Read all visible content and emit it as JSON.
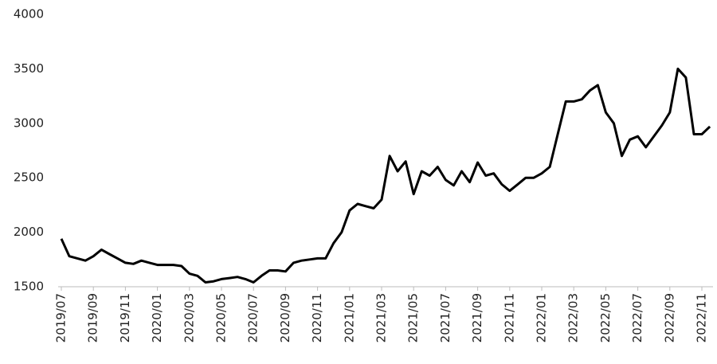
{
  "chart_data": {
    "type": "line",
    "categories": [
      "2019/07",
      null,
      null,
      null,
      "2019/09",
      null,
      null,
      null,
      "2019/11",
      null,
      null,
      null,
      "2020/01",
      null,
      null,
      null,
      "2020/03",
      null,
      null,
      null,
      "2020/05",
      null,
      null,
      null,
      "2020/07",
      null,
      null,
      null,
      "2020/09",
      null,
      null,
      null,
      "2020/11",
      null,
      null,
      null,
      "2021/01",
      null,
      null,
      null,
      "2021/03",
      null,
      null,
      null,
      "2021/05",
      null,
      null,
      null,
      "2021/07",
      null,
      null,
      null,
      "2021/09",
      null,
      null,
      null,
      "2021/11",
      null,
      null,
      null,
      "2022/01",
      null,
      null,
      null,
      "2022/03",
      null,
      null,
      null,
      "2022/05",
      null,
      null,
      null,
      "2022/07",
      null,
      null,
      null,
      "2022/09",
      null,
      null,
      null,
      "2022/11",
      null
    ],
    "series": [
      {
        "color": "#000000",
        "values": [
          1940,
          1780,
          1760,
          1740,
          1780,
          1840,
          1800,
          1760,
          1720,
          1710,
          1740,
          1720,
          1700,
          1700,
          1700,
          1690,
          1620,
          1600,
          1540,
          1550,
          1570,
          1580,
          1590,
          1570,
          1540,
          1600,
          1650,
          1650,
          1640,
          1720,
          1740,
          1750,
          1760,
          1760,
          1900,
          2000,
          2200,
          2260,
          2240,
          2220,
          2300,
          2700,
          2560,
          2650,
          2350,
          2560,
          2520,
          2600,
          2480,
          2430,
          2560,
          2460,
          2640,
          2520,
          2540,
          2440,
          2380,
          2440,
          2500,
          2500,
          2540,
          2600,
          2900,
          3200,
          3200,
          3220,
          3300,
          3350,
          3100,
          3000,
          2700,
          2850,
          2880,
          2780,
          2880,
          2980,
          3100,
          3500,
          3420,
          2900,
          2900,
          2970
        ]
      }
    ],
    "ylim": [
      1500,
      4000
    ],
    "yticks": [
      1500,
      2000,
      2500,
      3000,
      3500,
      4000
    ],
    "grid": false
  }
}
